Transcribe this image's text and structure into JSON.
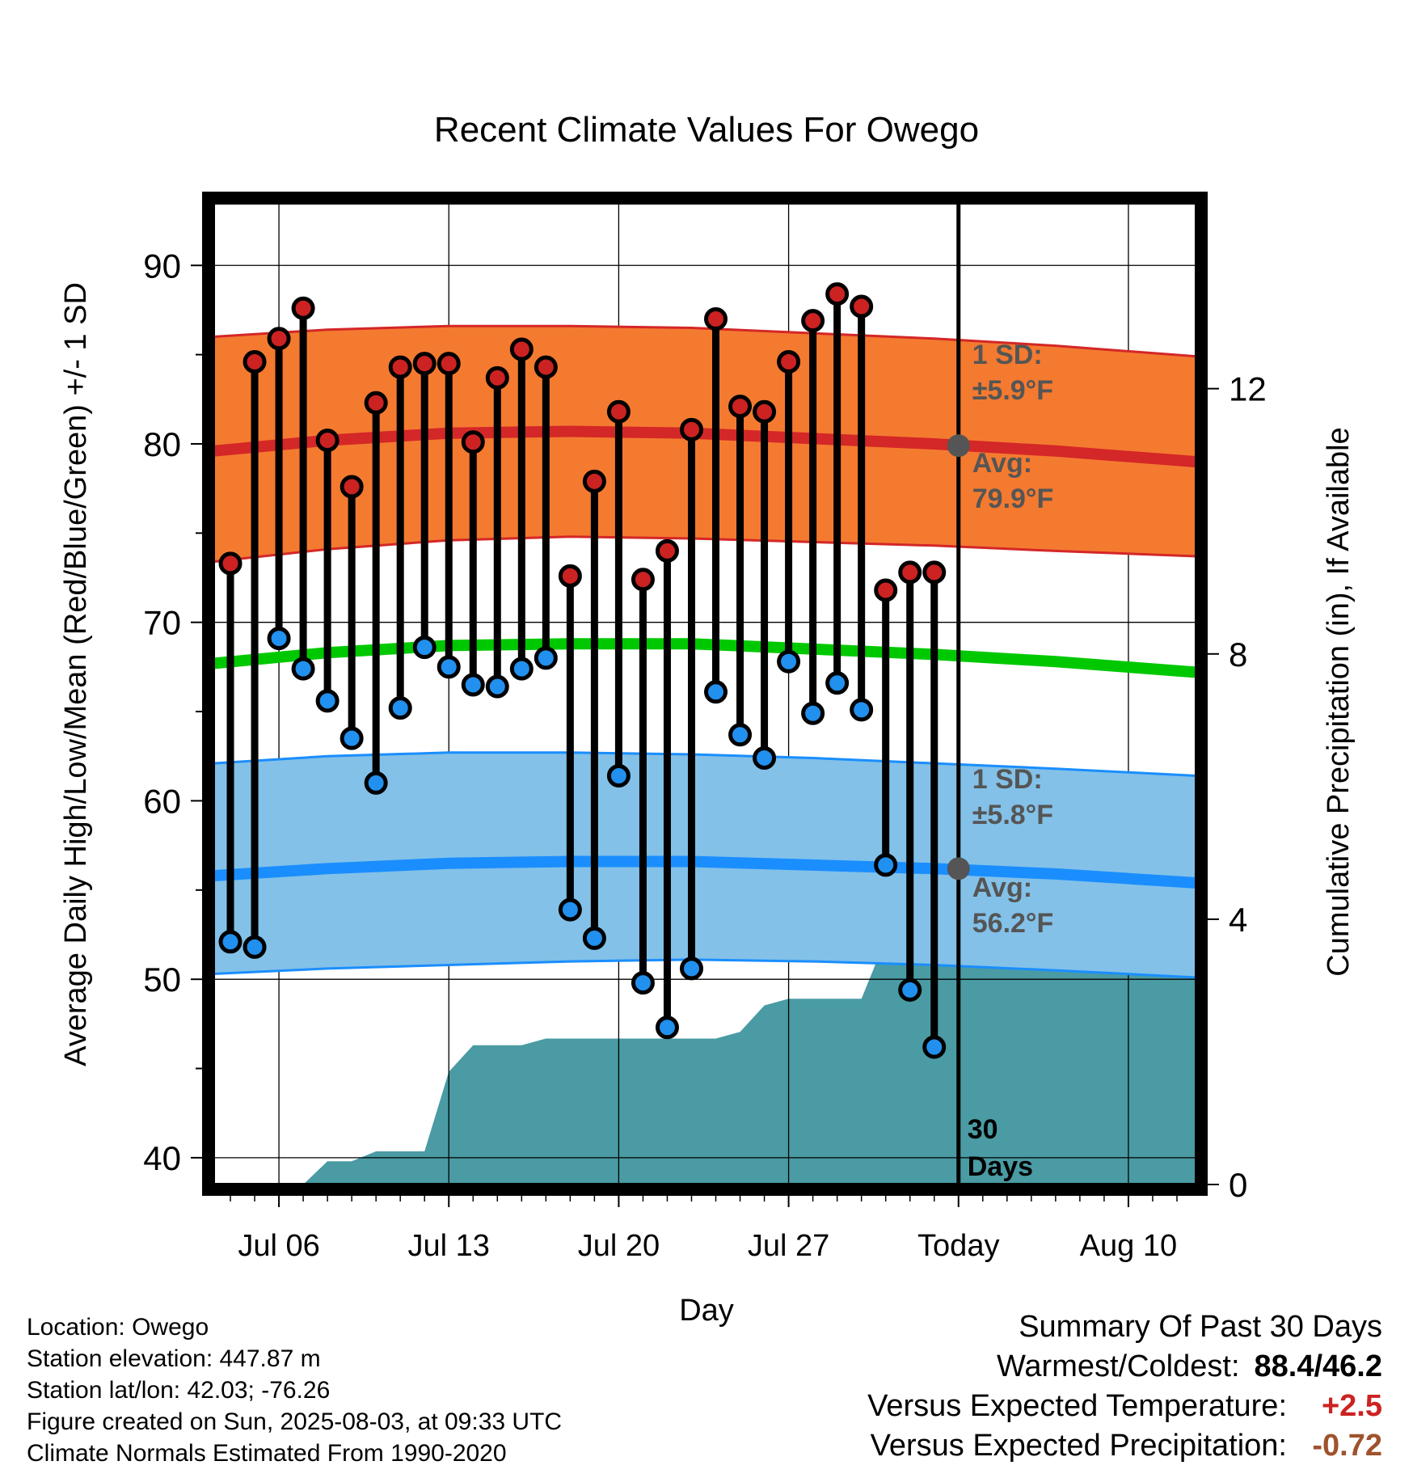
{
  "chart_data": {
    "type": "line",
    "title": "Recent Climate Values For Owego",
    "xlabel": "Day",
    "ylabel_left": "Average Daily High/Low/Mean (Red/Blue/Green) +/- 1 SD",
    "ylabel_right": "Cumulative Precipitation (in), If Available",
    "x_tick_labels": [
      {
        "day": 6,
        "label": "Jul 06"
      },
      {
        "day": 13,
        "label": "Jul 13"
      },
      {
        "day": 20,
        "label": "Jul 20"
      },
      {
        "day": 27,
        "label": "Jul 27"
      },
      {
        "day": 34,
        "label": "Today"
      },
      {
        "day": 41,
        "label": "Aug 10"
      }
    ],
    "x_range_days": [
      3.3,
      43.8
    ],
    "y_left_range": [
      38.5,
      93.5
    ],
    "y_left_ticks": [
      40,
      50,
      60,
      70,
      80,
      90
    ],
    "y_right_range": [
      0,
      14.8
    ],
    "y_right_ticks": [
      0,
      4,
      8,
      12
    ],
    "today_day": 34,
    "days_axis_note": "Day numbers count from July 1 (Jul 06 = 6, Today = Aug 03 = 34)",
    "daily_observations": {
      "days": [
        4,
        5,
        6,
        7,
        8,
        9,
        10,
        11,
        12,
        13,
        14,
        15,
        16,
        17,
        18,
        19,
        20,
        21,
        22,
        23,
        24,
        25,
        26,
        27,
        28,
        29,
        30,
        31,
        32,
        33
      ],
      "highs": [
        73.3,
        84.6,
        85.9,
        87.6,
        80.2,
        77.6,
        82.3,
        84.3,
        84.5,
        84.5,
        80.1,
        83.7,
        85.3,
        84.3,
        72.6,
        77.9,
        81.8,
        72.4,
        74.0,
        80.8,
        87.0,
        82.1,
        81.8,
        84.6,
        86.9,
        88.4,
        87.7,
        71.8,
        72.8,
        72.8
      ],
      "lows": [
        52.1,
        51.8,
        69.1,
        67.4,
        65.6,
        63.5,
        61.0,
        65.2,
        68.6,
        67.5,
        66.5,
        66.4,
        67.4,
        68.0,
        53.9,
        52.3,
        61.4,
        49.8,
        47.3,
        50.6,
        66.1,
        63.7,
        62.4,
        67.8,
        64.9,
        66.6,
        65.1,
        56.4,
        49.4,
        46.2
      ],
      "high_color": "#cc2222",
      "low_color": "#2190ee",
      "connector_color": "#000000"
    },
    "normals": {
      "days": [
        3.3,
        8,
        13,
        18,
        23,
        28,
        33,
        38,
        43.8
      ],
      "high_avg": [
        79.6,
        80.2,
        80.6,
        80.7,
        80.6,
        80.3,
        80.0,
        79.6,
        79.0
      ],
      "high_sd_upper": [
        86.0,
        86.4,
        86.6,
        86.6,
        86.5,
        86.2,
        85.9,
        85.5,
        84.9
      ],
      "high_sd_lower": [
        73.4,
        74.1,
        74.6,
        74.8,
        74.7,
        74.5,
        74.3,
        74.0,
        73.7
      ],
      "low_avg": [
        55.8,
        56.2,
        56.5,
        56.6,
        56.6,
        56.4,
        56.2,
        55.9,
        55.4
      ],
      "low_sd_upper": [
        62.1,
        62.5,
        62.7,
        62.7,
        62.6,
        62.4,
        62.1,
        61.8,
        61.4
      ],
      "low_sd_lower": [
        50.3,
        50.6,
        50.8,
        51.0,
        51.1,
        51.0,
        50.8,
        50.5,
        50.1
      ],
      "mean_avg": [
        67.7,
        68.3,
        68.7,
        68.8,
        68.8,
        68.5,
        68.2,
        67.8,
        67.2
      ],
      "high_band_color": "#f47a30",
      "high_line_color": "#d42727",
      "low_band_color": "#83c1e8",
      "low_line_color": "#1a8eff",
      "mean_line_color": "#00c800",
      "marker_color": "#555555"
    },
    "precipitation": {
      "days": [
        3.3,
        4,
        5,
        6,
        7,
        8,
        9,
        10,
        11,
        12,
        13,
        14,
        15,
        16,
        17,
        18,
        19,
        20,
        21,
        22,
        23,
        24,
        25,
        26,
        27,
        28,
        29,
        30,
        31,
        32,
        33,
        34,
        43.8
      ],
      "cumulative_in": [
        0,
        0,
        0,
        0,
        0.0,
        0.35,
        0.35,
        0.5,
        0.5,
        0.5,
        1.7,
        2.1,
        2.1,
        2.1,
        2.2,
        2.2,
        2.2,
        2.2,
        2.2,
        2.2,
        2.2,
        2.2,
        2.3,
        2.7,
        2.8,
        2.8,
        2.8,
        2.8,
        3.7,
        3.7,
        3.7,
        3.7,
        3.7
      ],
      "fill_color": "#4a9ba3"
    },
    "annotations": {
      "high_sd_label": "1 SD:",
      "high_sd_value": "±5.9°F",
      "high_avg_label": "Avg:",
      "high_avg_value": "79.9°F",
      "low_sd_label": "1 SD:",
      "low_sd_value": "±5.8°F",
      "low_avg_label": "Avg:",
      "low_avg_value": "56.2°F",
      "days_count": "30",
      "days_word": "Days",
      "annotation_color": "#555555"
    }
  },
  "info": {
    "location": "Location: Owego",
    "elevation": "Station elevation: 447.87 m",
    "latlon": "Station lat/lon: 42.03; -76.26",
    "created": "Figure created on Sun, 2025-08-03, at 09:33 UTC",
    "normals": "Climate Normals Estimated From 1990-2020"
  },
  "summary": {
    "heading": "Summary Of Past 30 Days",
    "warm_cold_label": "Warmest/Coldest:",
    "warm_cold_value": "88.4/46.2",
    "temp_label": "Versus Expected Temperature:",
    "temp_value": "+2.5",
    "temp_color": "#cc2222",
    "precip_label": "Versus Expected Precipitation:",
    "precip_value": "-0.72",
    "precip_color": "#a0522d"
  }
}
